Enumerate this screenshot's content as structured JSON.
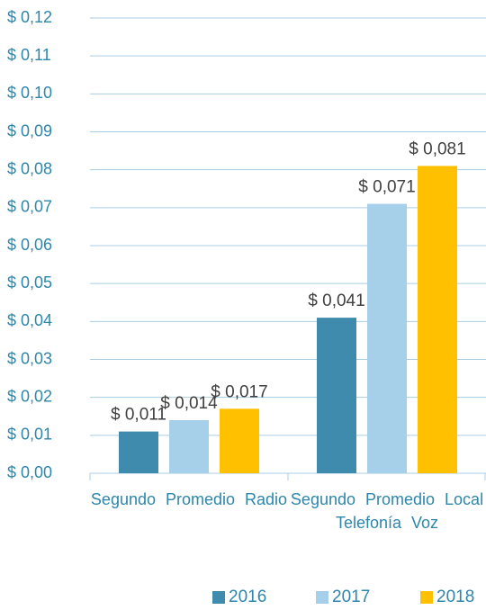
{
  "chart_data": {
    "type": "bar",
    "categories": [
      "Segundo Promedio Radio",
      "Segundo Promedio Local Telefonía Voz"
    ],
    "series": [
      {
        "name": "2016",
        "color": "#3f8bae",
        "values": [
          0.011,
          0.041
        ],
        "value_labels": [
          "$ 0,011",
          "$ 0,041"
        ]
      },
      {
        "name": "2017",
        "color": "#a6cfe9",
        "values": [
          0.014,
          0.071
        ],
        "value_labels": [
          "$ 0,014",
          "$ 0,071"
        ]
      },
      {
        "name": "2018",
        "color": "#ffc000",
        "values": [
          0.017,
          0.081
        ],
        "value_labels": [
          "$ 0,017",
          "$ 0,081"
        ]
      }
    ],
    "ylim": [
      0,
      0.12
    ],
    "yticks": [
      {
        "value": 0,
        "label": "$ 0,00"
      },
      {
        "value": 0.01,
        "label": "$ 0,01"
      },
      {
        "value": 0.02,
        "label": "$ 0,02"
      },
      {
        "value": 0.03,
        "label": "$ 0,03"
      },
      {
        "value": 0.04,
        "label": "$ 0,04"
      },
      {
        "value": 0.05,
        "label": "$ 0,05"
      },
      {
        "value": 0.06,
        "label": "$ 0,06"
      },
      {
        "value": 0.07,
        "label": "$ 0,07"
      },
      {
        "value": 0.08,
        "label": "$ 0,08"
      },
      {
        "value": 0.09,
        "label": "$ 0,09"
      },
      {
        "value": 0.1,
        "label": "$ 0,10"
      },
      {
        "value": 0.11,
        "label": "$ 0,11"
      },
      {
        "value": 0.12,
        "label": "$ 0,12"
      }
    ],
    "grid": true,
    "legend": "bottom"
  }
}
